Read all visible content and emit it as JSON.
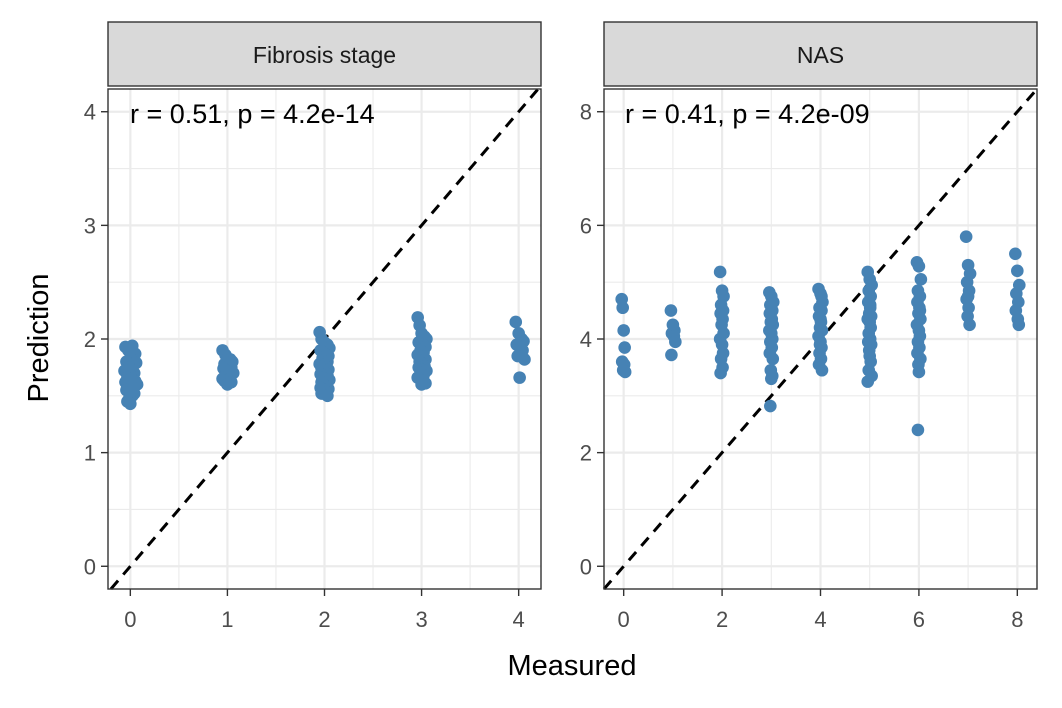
{
  "chart_data": [
    {
      "type": "scatter",
      "panel": "Fibrosis stage",
      "annotation": "r = 0.51, p = 4.2e-14",
      "xlabel": "Measured",
      "ylabel": "Prediction",
      "xlim": [
        -0.23,
        4.23
      ],
      "ylim": [
        -0.2,
        4.2
      ],
      "xticks": [
        0,
        1,
        2,
        3,
        4
      ],
      "yticks": [
        0,
        1,
        2,
        3,
        4
      ],
      "reference_line": "y = x (dashed)",
      "point_color": "#4682B4",
      "x": [
        -0.05,
        -0.02,
        0.02,
        0.05,
        0.0,
        -0.04,
        0.03,
        0.06,
        -0.01,
        0.01,
        -0.06,
        0.04,
        0.0,
        -0.03,
        0.02,
        0.05,
        -0.05,
        0.01,
        -0.02,
        0.03,
        0.07,
        -0.04,
        0.0,
        0.02,
        0.04,
        -0.01,
        0.03,
        -0.03,
        0.0,
        0.01,
        0.95,
        0.98,
        1.0,
        1.03,
        1.05,
        0.97,
        1.01,
        1.04,
        0.96,
        0.99,
        1.02,
        1.06,
        0.98,
        1.0,
        1.03,
        0.95,
        1.01,
        0.97,
        1.04,
        1.0,
        1.95,
        1.97,
        2.0,
        2.03,
        2.05,
        1.96,
        1.99,
        2.02,
        2.04,
        1.98,
        2.01,
        2.03,
        1.95,
        2.0,
        2.02,
        1.97,
        2.04,
        1.99,
        2.01,
        1.96,
        2.03,
        1.98,
        2.0,
        2.05,
        1.97,
        2.02,
        1.99,
        2.01,
        1.96,
        2.04,
        2.0,
        1.98,
        2.02,
        1.97,
        2.03,
        2.96,
        2.98,
        3.0,
        3.03,
        3.05,
        2.97,
        3.01,
        3.04,
        2.99,
        3.02,
        2.96,
        3.0,
        3.04,
        2.98,
        3.01,
        3.03,
        2.97,
        3.0,
        3.05,
        2.99,
        3.02,
        2.96,
        3.01,
        3.04,
        3.0,
        3.97,
        4.0,
        4.03,
        4.05,
        3.98,
        4.02,
        4.04,
        3.99,
        4.06,
        4.01
      ],
      "y": [
        1.93,
        1.9,
        1.94,
        1.87,
        1.83,
        1.8,
        1.78,
        1.79,
        1.75,
        1.73,
        1.72,
        1.7,
        1.68,
        1.66,
        1.64,
        1.63,
        1.62,
        1.6,
        1.58,
        1.57,
        1.6,
        1.55,
        1.53,
        1.5,
        1.52,
        1.48,
        1.56,
        1.45,
        1.43,
        1.65,
        1.9,
        1.86,
        1.83,
        1.82,
        1.8,
        1.78,
        1.76,
        1.75,
        1.74,
        1.72,
        1.71,
        1.7,
        1.68,
        1.67,
        1.66,
        1.65,
        1.64,
        1.63,
        1.62,
        1.6,
        2.06,
        2.0,
        1.97,
        1.95,
        1.92,
        1.9,
        1.88,
        1.86,
        1.85,
        1.83,
        1.82,
        1.8,
        1.78,
        1.77,
        1.75,
        1.74,
        1.73,
        1.72,
        1.7,
        1.69,
        1.68,
        1.66,
        1.65,
        1.64,
        1.62,
        1.61,
        1.6,
        1.58,
        1.57,
        1.56,
        1.55,
        1.54,
        1.53,
        1.52,
        1.5,
        2.19,
        2.12,
        2.05,
        2.02,
        2.0,
        1.97,
        1.95,
        1.93,
        1.9,
        1.88,
        1.86,
        1.84,
        1.82,
        1.8,
        1.78,
        1.76,
        1.75,
        1.73,
        1.72,
        1.7,
        1.68,
        1.66,
        1.63,
        1.61,
        1.6,
        2.15,
        2.05,
        2.0,
        1.98,
        1.95,
        1.92,
        1.9,
        1.85,
        1.82,
        1.66
      ]
    },
    {
      "type": "scatter",
      "panel": "NAS",
      "annotation": "r = 0.41, p = 4.2e-09",
      "xlabel": "Measured",
      "ylabel": "Prediction",
      "xlim": [
        -0.4,
        8.4
      ],
      "ylim": [
        -0.4,
        8.4
      ],
      "xticks": [
        0,
        2,
        4,
        6,
        8
      ],
      "yticks": [
        0,
        2,
        4,
        6,
        8
      ],
      "reference_line": "y = x (dashed)",
      "point_color": "#4682B4",
      "x": [
        -0.04,
        -0.02,
        0.0,
        0.02,
        -0.03,
        0.01,
        -0.01,
        0.03,
        0.96,
        1.0,
        1.03,
        0.98,
        1.02,
        1.05,
        0.97,
        1.96,
        2.0,
        2.03,
        1.98,
        2.02,
        1.97,
        2.01,
        1.99,
        2.03,
        1.96,
        2.0,
        2.02,
        1.98,
        2.01,
        1.97,
        2.96,
        3.0,
        3.04,
        2.98,
        3.02,
        2.97,
        3.01,
        2.99,
        3.03,
        2.96,
        3.0,
        3.02,
        2.98,
        3.01,
        2.97,
        3.03,
        2.99,
        3.0,
        3.02,
        2.98,
        3.96,
        4.0,
        4.04,
        3.98,
        4.02,
        3.97,
        4.01,
        3.99,
        4.03,
        3.96,
        4.0,
        4.02,
        3.98,
        4.01,
        3.97,
        4.03,
        3.99,
        4.0,
        4.02,
        4.96,
        5.0,
        5.04,
        4.98,
        5.02,
        4.97,
        5.01,
        4.99,
        5.03,
        4.96,
        5.0,
        5.02,
        4.98,
        5.01,
        4.97,
        5.03,
        4.99,
        5.0,
        5.02,
        4.98,
        5.04,
        4.96,
        5.01,
        5.96,
        6.0,
        6.04,
        5.98,
        6.02,
        5.97,
        6.01,
        5.99,
        6.03,
        5.96,
        6.0,
        6.02,
        5.98,
        6.01,
        5.97,
        6.03,
        5.99,
        6.0,
        6.02,
        5.98,
        6.96,
        7.0,
        7.04,
        6.98,
        7.02,
        6.97,
        7.01,
        6.99,
        7.03,
        7.0,
        7.96,
        8.0,
        8.04,
        7.98,
        8.02,
        7.97,
        8.01,
        8.03
      ],
      "y": [
        4.7,
        4.55,
        4.15,
        3.85,
        3.6,
        3.55,
        3.45,
        3.42,
        4.5,
        4.25,
        4.15,
        4.1,
        4.05,
        3.95,
        3.72,
        5.18,
        4.85,
        4.75,
        4.6,
        4.5,
        4.45,
        4.35,
        4.25,
        4.1,
        4.0,
        3.9,
        3.75,
        3.65,
        3.5,
        3.4,
        4.82,
        4.75,
        4.65,
        4.6,
        4.5,
        4.45,
        4.35,
        4.3,
        4.25,
        4.15,
        4.1,
        4.0,
        3.95,
        3.85,
        3.75,
        3.65,
        3.45,
        3.3,
        3.35,
        2.82,
        4.88,
        4.8,
        4.65,
        4.55,
        4.5,
        4.4,
        4.3,
        4.2,
        4.15,
        4.05,
        3.95,
        3.85,
        3.75,
        3.65,
        3.55,
        3.45,
        3.9,
        4.35,
        4.75,
        5.18,
        5.05,
        4.95,
        4.85,
        4.75,
        4.65,
        4.55,
        4.45,
        4.4,
        4.35,
        4.3,
        4.2,
        4.1,
        4.0,
        3.95,
        3.9,
        3.8,
        3.7,
        3.6,
        3.45,
        3.35,
        3.25,
        4.6,
        5.35,
        5.28,
        5.05,
        4.85,
        4.75,
        4.65,
        4.55,
        4.45,
        4.35,
        4.25,
        4.15,
        4.05,
        3.95,
        3.85,
        3.75,
        3.65,
        3.55,
        3.42,
        4.5,
        2.4,
        5.8,
        5.3,
        5.15,
        5.0,
        4.85,
        4.7,
        4.55,
        4.4,
        4.25,
        4.75,
        5.5,
        5.2,
        4.95,
        4.8,
        4.65,
        4.5,
        4.35,
        4.25
      ]
    }
  ]
}
